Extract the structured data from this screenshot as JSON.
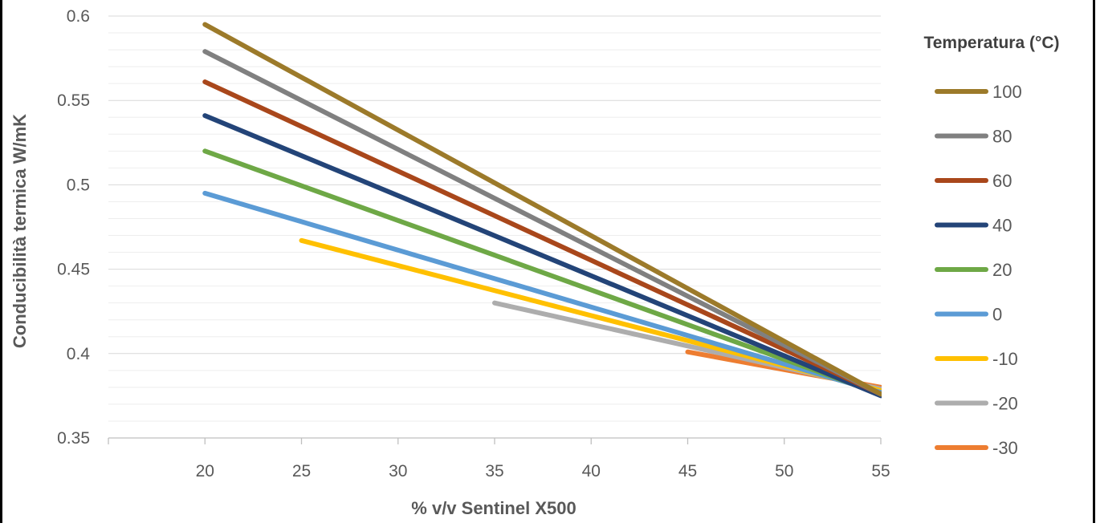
{
  "chart_data": {
    "type": "line",
    "title": "",
    "xlabel": "% v/v Sentinel X500",
    "ylabel": "Conducibilità termica W/mK",
    "xlim": [
      15,
      55
    ],
    "ylim": [
      0.35,
      0.6
    ],
    "x_ticks": [
      20,
      25,
      30,
      35,
      40,
      45,
      50,
      55
    ],
    "x_tick_labels": [
      "20",
      "25",
      "30",
      "35",
      "40",
      "45",
      "50",
      "55"
    ],
    "y_ticks": [
      0.35,
      0.4,
      0.45,
      0.5,
      0.55,
      0.6
    ],
    "y_tick_labels": [
      "0.35",
      "0.4",
      "0.45",
      "0.5",
      "0.55",
      "0.6"
    ],
    "grid": true,
    "legend_title": "Temperatura (°C)",
    "legend_position": "right",
    "series": [
      {
        "name": "100",
        "color": "#9C7A2A",
        "x": [
          20,
          55
        ],
        "y": [
          0.595,
          0.376
        ]
      },
      {
        "name": "80",
        "color": "#808080",
        "x": [
          20,
          55
        ],
        "y": [
          0.579,
          0.376
        ]
      },
      {
        "name": "60",
        "color": "#A9471B",
        "x": [
          20,
          55
        ],
        "y": [
          0.561,
          0.376
        ]
      },
      {
        "name": "40",
        "color": "#234478",
        "x": [
          20,
          55
        ],
        "y": [
          0.541,
          0.375
        ]
      },
      {
        "name": "20",
        "color": "#6EA846",
        "x": [
          20,
          55
        ],
        "y": [
          0.52,
          0.376
        ]
      },
      {
        "name": "0",
        "color": "#5B9BD5",
        "x": [
          20,
          55
        ],
        "y": [
          0.495,
          0.377
        ]
      },
      {
        "name": "-10",
        "color": "#FFC000",
        "x": [
          25,
          55
        ],
        "y": [
          0.467,
          0.378
        ]
      },
      {
        "name": "-20",
        "color": "#ADADAD",
        "x": [
          35,
          55
        ],
        "y": [
          0.43,
          0.379
        ]
      },
      {
        "name": "-30",
        "color": "#ED7D31",
        "x": [
          45,
          55
        ],
        "y": [
          0.401,
          0.38
        ]
      }
    ]
  }
}
